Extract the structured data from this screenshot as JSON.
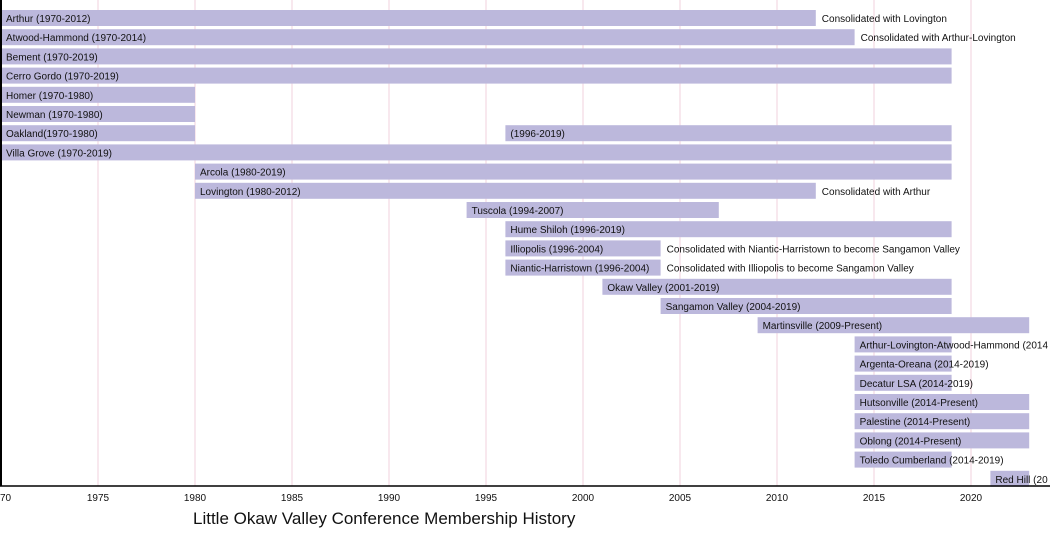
{
  "chart_data": {
    "type": "timeline",
    "title": "Little Okaw Valley Conference Membership History",
    "xlim": [
      1970,
      2024
    ],
    "present_year": 2023,
    "x_ticks": [
      "70",
      "1975",
      "1980",
      "1985",
      "1990",
      "1995",
      "2000",
      "2005",
      "2010",
      "2015",
      "2020"
    ],
    "x_tick_values": [
      1970,
      1975,
      1980,
      1985,
      1990,
      1995,
      2000,
      2005,
      2010,
      2015,
      2020
    ],
    "grid": true,
    "colors": {
      "bar": "#bcb8dc",
      "grid": "#f0d2dc",
      "axis": "#000000"
    },
    "rows": [
      {
        "bars": [
          {
            "start": 1970,
            "end": 2012,
            "label": "Arthur (1970-2012)"
          }
        ],
        "note": "Consolidated with Lovington"
      },
      {
        "bars": [
          {
            "start": 1970,
            "end": 2014,
            "label": "Atwood-Hammond (1970-2014)"
          }
        ],
        "note": "Consolidated with Arthur-Lovington"
      },
      {
        "bars": [
          {
            "start": 1970,
            "end": 2019,
            "label": "Bement (1970-2019)"
          }
        ]
      },
      {
        "bars": [
          {
            "start": 1970,
            "end": 2019,
            "label": "Cerro Gordo (1970-2019)"
          }
        ]
      },
      {
        "bars": [
          {
            "start": 1970,
            "end": 1980,
            "label": "Homer (1970-1980)"
          }
        ]
      },
      {
        "bars": [
          {
            "start": 1970,
            "end": 1980,
            "label": "Newman (1970-1980)"
          }
        ]
      },
      {
        "bars": [
          {
            "start": 1970,
            "end": 1980,
            "label": "Oakland(1970-1980)"
          },
          {
            "start": 1996,
            "end": 2019,
            "label": "(1996-2019)"
          }
        ]
      },
      {
        "bars": [
          {
            "start": 1970,
            "end": 2019,
            "label": "Villa Grove (1970-2019)"
          }
        ]
      },
      {
        "bars": [
          {
            "start": 1980,
            "end": 2019,
            "label": "Arcola (1980-2019)"
          }
        ]
      },
      {
        "bars": [
          {
            "start": 1980,
            "end": 2012,
            "label": "Lovington (1980-2012)"
          }
        ],
        "note": "Consolidated with Arthur"
      },
      {
        "bars": [
          {
            "start": 1994,
            "end": 2007,
            "label": "Tuscola (1994-2007)"
          }
        ]
      },
      {
        "bars": [
          {
            "start": 1996,
            "end": 2019,
            "label": "Hume Shiloh (1996-2019)"
          }
        ]
      },
      {
        "bars": [
          {
            "start": 1996,
            "end": 2004,
            "label": "Illiopolis (1996-2004)"
          }
        ],
        "note": "Consolidated with Niantic-Harristown to become Sangamon Valley"
      },
      {
        "bars": [
          {
            "start": 1996,
            "end": 2004,
            "label": "Niantic-Harristown (1996-2004)"
          }
        ],
        "note": "Consolidated with Illiopolis to become Sangamon Valley"
      },
      {
        "bars": [
          {
            "start": 2001,
            "end": 2019,
            "label": "Okaw Valley (2001-2019)"
          }
        ]
      },
      {
        "bars": [
          {
            "start": 2004,
            "end": 2019,
            "label": "Sangamon Valley (2004-2019)"
          }
        ]
      },
      {
        "bars": [
          {
            "start": 2009,
            "end": 2023,
            "label": "Martinsville (2009-Present)"
          }
        ]
      },
      {
        "bars": [
          {
            "start": 2014,
            "end": 2019,
            "label": "Arthur-Lovington-Atwood-Hammond (2014"
          }
        ]
      },
      {
        "bars": [
          {
            "start": 2014,
            "end": 2019,
            "label": "Argenta-Oreana (2014-2019)"
          }
        ]
      },
      {
        "bars": [
          {
            "start": 2014,
            "end": 2019,
            "label": "Decatur LSA (2014-2019)"
          }
        ]
      },
      {
        "bars": [
          {
            "start": 2014,
            "end": 2023,
            "label": "Hutsonville (2014-Present)"
          }
        ]
      },
      {
        "bars": [
          {
            "start": 2014,
            "end": 2023,
            "label": "Palestine (2014-Present)"
          }
        ]
      },
      {
        "bars": [
          {
            "start": 2014,
            "end": 2023,
            "label": "Oblong (2014-Present)"
          }
        ]
      },
      {
        "bars": [
          {
            "start": 2014,
            "end": 2019,
            "label": "Toledo Cumberland (2014-2019)"
          }
        ]
      },
      {
        "bars": [
          {
            "start": 2021,
            "end": 2023,
            "label": "Red Hill (20"
          }
        ]
      }
    ]
  }
}
